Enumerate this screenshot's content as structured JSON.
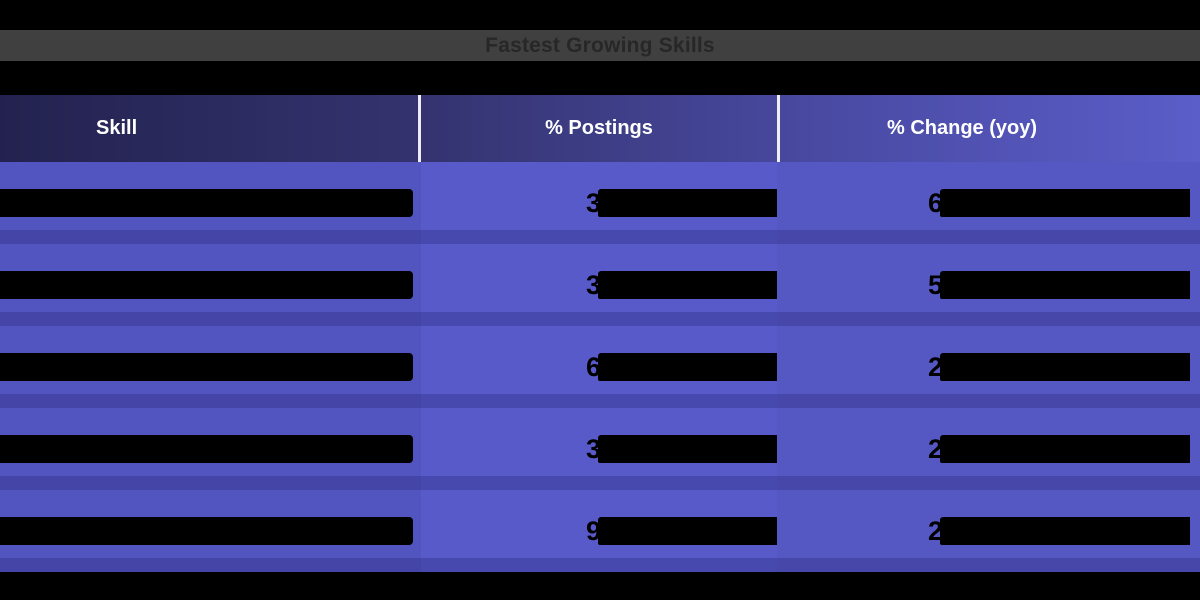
{
  "title_bar": {
    "title": "Fastest Growing Skills"
  },
  "table": {
    "columns": [
      {
        "label": "Skill"
      },
      {
        "label": "% Postings"
      },
      {
        "label": "% Change (yoy)"
      }
    ],
    "rows": [
      {
        "skill_redacted": true,
        "postings_prefix": "3",
        "postings_redacted": true,
        "change_prefix": "6",
        "change_redacted": true
      },
      {
        "skill_redacted": true,
        "postings_prefix": "3",
        "postings_redacted": true,
        "change_prefix": "5",
        "change_redacted": true
      },
      {
        "skill_redacted": true,
        "postings_prefix": "6",
        "postings_redacted": true,
        "change_prefix": "2",
        "change_redacted": true
      },
      {
        "skill_redacted": true,
        "postings_prefix": "3",
        "postings_redacted": true,
        "change_prefix": "2",
        "change_redacted": true
      },
      {
        "skill_redacted": true,
        "postings_prefix": "9",
        "postings_redacted": true,
        "change_prefix": "2",
        "change_redacted": true
      }
    ]
  },
  "colors": {
    "page_background": "#000000",
    "title_bar_background": "#404040",
    "title_text": "#272727",
    "header_gradient_left": "#23224f",
    "header_gradient_right": "#5b5dc9",
    "header_text": "#ffffff",
    "body_column_skill": "#5255bf",
    "body_column_postings": "#585ac9",
    "body_column_change": "#5558c3",
    "row_separator_overlay": "rgba(16,14,76,0.22)",
    "redaction_bar": "#000000"
  }
}
